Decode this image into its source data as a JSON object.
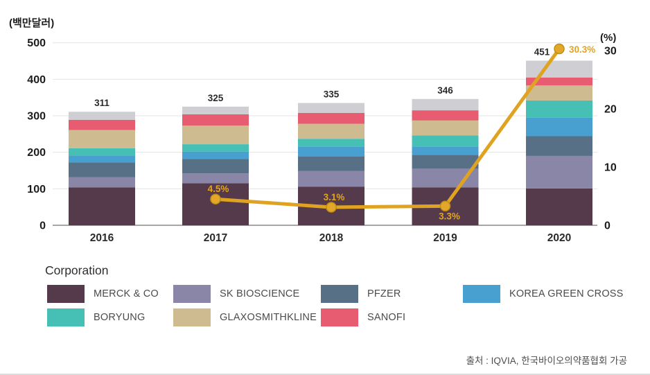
{
  "chart": {
    "left_axis_title": "(백만달러)",
    "right_axis_title": "(%)",
    "left_axis_ticks": [
      "0",
      "100",
      "200",
      "300",
      "400",
      "500"
    ],
    "right_axis_ticks": [
      "0",
      "10",
      "20",
      "30"
    ],
    "source": "출처 : IQVIA, 한국바이오의약품협회 가공"
  },
  "legend": {
    "title": "Corporation",
    "items": [
      {
        "label": "MERCK & CO",
        "color": "#543A4A"
      },
      {
        "label": "SK BIOSCIENCE",
        "color": "#8A86A7"
      },
      {
        "label": "PFZER",
        "color": "#587086"
      },
      {
        "label": "KOREA GREEN CROSS",
        "color": "#47A0D0"
      },
      {
        "label": "BORYUNG",
        "color": "#46BFB5"
      },
      {
        "label": "GLAXOSMITHKLINE",
        "color": "#CEBB90"
      },
      {
        "label": "SANOFI",
        "color": "#E85C72"
      }
    ]
  },
  "chart_data": {
    "type": "bar",
    "subtype": "stacked-column-with-line",
    "title": "",
    "xlabel": "",
    "ylabel_left": "(백만달러)",
    "ylabel_right": "(%)",
    "categories": [
      "2016",
      "2017",
      "2018",
      "2019",
      "2020"
    ],
    "series": [
      {
        "name": "MERCK & CO",
        "color": "#543A4A",
        "values": [
          104,
          115,
          106,
          104,
          101
        ]
      },
      {
        "name": "SK BIOSCIENCE",
        "color": "#8A86A7",
        "values": [
          28,
          27,
          43,
          51,
          89
        ]
      },
      {
        "name": "PFZER",
        "color": "#587086",
        "values": [
          40,
          40,
          39,
          38,
          54
        ]
      },
      {
        "name": "KOREA GREEN CROSS",
        "color": "#47A0D0",
        "values": [
          19,
          20,
          28,
          23,
          51
        ]
      },
      {
        "name": "BORYUNG",
        "color": "#46BFB5",
        "values": [
          20,
          20,
          21,
          30,
          47
        ]
      },
      {
        "name": "GLAXOSMITHKLINE",
        "color": "#CEBB90",
        "values": [
          50,
          51,
          41,
          41,
          41
        ]
      },
      {
        "name": "SANOFI",
        "color": "#E85C72",
        "values": [
          28,
          31,
          30,
          28,
          22
        ]
      },
      {
        "name": "unlabeled-top-segment",
        "color": "#CFCED2",
        "values": [
          22,
          21,
          27,
          31,
          46
        ]
      }
    ],
    "totals": [
      "311",
      "325",
      "335",
      "346",
      "451"
    ],
    "line_series": {
      "name": "share-percent-line",
      "color": "#DFA321",
      "points": [
        {
          "category": "2017",
          "value": 4.5,
          "label": "4.5%",
          "label_pos": "above"
        },
        {
          "category": "2018",
          "value": 3.1,
          "label": "3.1%",
          "label_pos": "above"
        },
        {
          "category": "2019",
          "value": 3.3,
          "label": "3.3%",
          "label_pos": "below"
        },
        {
          "category": "2020",
          "value": 30.3,
          "label": "30.3%",
          "label_pos": "right"
        }
      ]
    },
    "left_ylim": [
      0,
      500
    ],
    "right_ylim": [
      0,
      30
    ],
    "grid": true,
    "legend_position": "bottom"
  }
}
